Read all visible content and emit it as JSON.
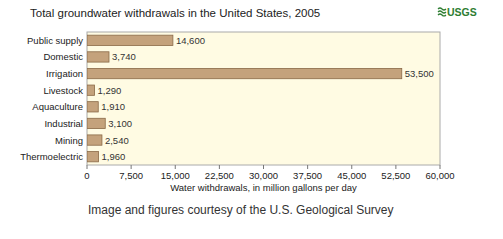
{
  "chart_data": {
    "type": "bar",
    "orientation": "horizontal",
    "title": "Total groundwater withdrawals in the United States, 2005",
    "categories": [
      "Public supply",
      "Domestic",
      "Irrigation",
      "Livestock",
      "Aquaculture",
      "Industrial",
      "Mining",
      "Thermoelectric"
    ],
    "values": [
      14600,
      3740,
      53500,
      1290,
      1910,
      3100,
      2540,
      1960
    ],
    "value_labels": [
      "14,600",
      "3,740",
      "53,500",
      "1,290",
      "1,910",
      "3,100",
      "2,540",
      "1,960"
    ],
    "data_labels": true,
    "color": "#c4a27c",
    "x_label": "Water withdrawals, in million gallons per day",
    "xlim": [
      0,
      60000
    ],
    "xticks": [
      0,
      {
        "value": 7500,
        "label": "7,500"
      },
      {
        "value": 15000,
        "label": "15,000"
      },
      {
        "value": 22500,
        "label": "22,500"
      },
      {
        "value": 30000,
        "label": "30,000"
      },
      {
        "value": 37500,
        "label": "37,500"
      },
      {
        "value": 45000,
        "label": "45,000"
      },
      {
        "value": 52500,
        "label": "52,500"
      },
      {
        "value": 60000,
        "label": "60,000"
      }
    ],
    "grid": false,
    "annotations": [
      "USGS",
      "Image and figures courtesy of the U.S. Geological Survey"
    ]
  }
}
